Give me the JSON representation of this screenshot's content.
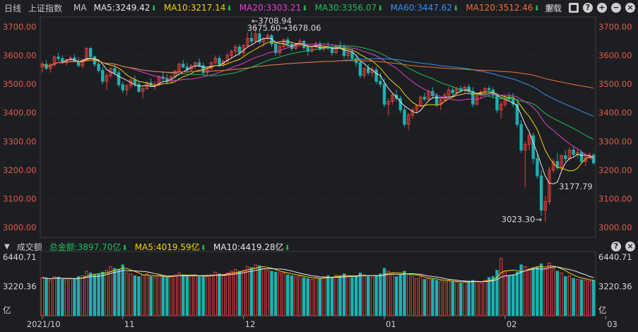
{
  "header": {
    "period": "日线",
    "index_name": "上证指数",
    "indicator": "MA",
    "ma5": "MA5:3249.42",
    "ma10": "MA10:3217.14",
    "ma20": "MA20:3303.21",
    "ma30": "MA30:3356.07",
    "ma60": "MA60:3447.62",
    "ma120": "MA120:3512.46",
    "more": "M",
    "reset_label": "重载",
    "arrow_glyph": "⬇",
    "icons": [
      "lock-icon",
      "help-icon",
      "zoom-in-icon",
      "zoom-out-icon",
      "close-icon"
    ]
  },
  "volume_header": {
    "title": "成交额",
    "total": "总金额:3897.70亿",
    "ma5": "MA5:4019.59亿",
    "ma10": "MA10:4419.28亿"
  },
  "colors": {
    "ma5": "#e8e8e8",
    "ma10": "#f5d10c",
    "ma20": "#e040c8",
    "ma30": "#1fbe5a",
    "ma60": "#3a8ef0",
    "ma120": "#f07030",
    "up": "#e8403a",
    "down": "#1fb0b0",
    "axis_text": "#e25a4a",
    "background": "#1d1e22"
  },
  "chart_data": {
    "type": "candlestick",
    "y_axis": {
      "ticks": [
        "3700.00",
        "3600.00",
        "3500.00",
        "3400.00",
        "3300.00",
        "3200.00",
        "3100.00",
        "3000.00"
      ],
      "ylim": [
        2975,
        3725
      ]
    },
    "x_axis": {
      "labels": [
        "2021/10",
        "11",
        "12",
        "01",
        "02",
        "03"
      ],
      "label_index": [
        0,
        20,
        50,
        85,
        115,
        140
      ]
    },
    "annotations": {
      "high": "3708.94",
      "high_near": "3675.60",
      "high2": "3678.06",
      "low": "3023.30",
      "recent_low": "3177.79"
    },
    "volume": {
      "ticks": [
        "6440.71",
        "3220.36",
        "亿"
      ],
      "max": 6440.71
    },
    "candles": [
      [
        3560,
        3580,
        3540,
        3570,
        4200
      ],
      [
        3570,
        3585,
        3550,
        3555,
        4100
      ],
      [
        3555,
        3575,
        3540,
        3568,
        3900
      ],
      [
        3568,
        3600,
        3560,
        3595,
        4300
      ],
      [
        3595,
        3610,
        3580,
        3590,
        4250
      ],
      [
        3590,
        3600,
        3570,
        3575,
        4000
      ],
      [
        3575,
        3590,
        3565,
        3585,
        3950
      ],
      [
        3585,
        3600,
        3575,
        3592,
        4100
      ],
      [
        3592,
        3605,
        3578,
        3580,
        4050
      ],
      [
        3580,
        3595,
        3560,
        3565,
        4300
      ],
      [
        3565,
        3590,
        3555,
        3586,
        4400
      ],
      [
        3586,
        3630,
        3580,
        3625,
        4900
      ],
      [
        3625,
        3630,
        3590,
        3596,
        4700
      ],
      [
        3596,
        3600,
        3560,
        3570,
        4500
      ],
      [
        3570,
        3580,
        3540,
        3548,
        4600
      ],
      [
        3548,
        3560,
        3500,
        3510,
        4800
      ],
      [
        3510,
        3540,
        3480,
        3530,
        5000
      ],
      [
        3530,
        3560,
        3520,
        3555,
        5400
      ],
      [
        3555,
        3570,
        3530,
        3540,
        5200
      ],
      [
        3540,
        3550,
        3490,
        3498,
        5100
      ],
      [
        3498,
        3510,
        3470,
        3480,
        5600
      ],
      [
        3480,
        3500,
        3460,
        3495,
        4700
      ],
      [
        3495,
        3520,
        3485,
        3515,
        4600
      ],
      [
        3515,
        3530,
        3490,
        3500,
        4400
      ],
      [
        3500,
        3510,
        3470,
        3475,
        4300
      ],
      [
        3475,
        3490,
        3450,
        3485,
        4500
      ],
      [
        3485,
        3510,
        3480,
        3505,
        4600
      ],
      [
        3505,
        3520,
        3490,
        3495,
        4300
      ],
      [
        3495,
        3510,
        3480,
        3500,
        4200
      ],
      [
        3500,
        3530,
        3495,
        3525,
        4400
      ],
      [
        3525,
        3540,
        3510,
        3520,
        4300
      ],
      [
        3520,
        3535,
        3500,
        3510,
        4200
      ],
      [
        3510,
        3530,
        3505,
        3528,
        4400
      ],
      [
        3528,
        3550,
        3520,
        3545,
        4500
      ],
      [
        3545,
        3575,
        3540,
        3570,
        4700
      ],
      [
        3570,
        3585,
        3555,
        3560,
        4500
      ],
      [
        3560,
        3575,
        3540,
        3550,
        4300
      ],
      [
        3550,
        3570,
        3545,
        3565,
        4400
      ],
      [
        3565,
        3580,
        3550,
        3575,
        4500
      ],
      [
        3575,
        3590,
        3560,
        3565,
        4300
      ],
      [
        3565,
        3575,
        3530,
        3540,
        4400
      ],
      [
        3540,
        3560,
        3530,
        3555,
        4300
      ],
      [
        3555,
        3580,
        3550,
        3575,
        4500
      ],
      [
        3575,
        3600,
        3570,
        3590,
        4800
      ],
      [
        3590,
        3600,
        3560,
        3570,
        4600
      ],
      [
        3570,
        3585,
        3560,
        3580,
        4400
      ],
      [
        3580,
        3610,
        3575,
        3600,
        4700
      ],
      [
        3600,
        3620,
        3590,
        3615,
        4900
      ],
      [
        3615,
        3640,
        3600,
        3630,
        5100
      ],
      [
        3630,
        3640,
        3600,
        3610,
        4900
      ],
      [
        3610,
        3640,
        3600,
        3635,
        5000
      ],
      [
        3635,
        3680,
        3630,
        3660,
        5400
      ],
      [
        3660,
        3685,
        3640,
        3650,
        5300
      ],
      [
        3650,
        3708,
        3645,
        3676,
        5600
      ],
      [
        3676,
        3690,
        3640,
        3648,
        5500
      ],
      [
        3648,
        3665,
        3630,
        3660,
        5200
      ],
      [
        3660,
        3678,
        3650,
        3670,
        5000
      ],
      [
        3670,
        3675,
        3630,
        3640,
        4900
      ],
      [
        3640,
        3650,
        3600,
        3610,
        4800
      ],
      [
        3610,
        3640,
        3600,
        3632,
        4700
      ],
      [
        3632,
        3660,
        3625,
        3655,
        4700
      ],
      [
        3655,
        3665,
        3630,
        3640,
        4500
      ],
      [
        3640,
        3650,
        3615,
        3625,
        4400
      ],
      [
        3625,
        3645,
        3620,
        3640,
        4300
      ],
      [
        3640,
        3660,
        3630,
        3650,
        4400
      ],
      [
        3650,
        3655,
        3620,
        3628,
        4200
      ],
      [
        3628,
        3640,
        3600,
        3615,
        4100
      ],
      [
        3615,
        3635,
        3610,
        3630,
        4000
      ],
      [
        3630,
        3650,
        3620,
        3640,
        4200
      ],
      [
        3640,
        3650,
        3615,
        3622,
        4100
      ],
      [
        3622,
        3640,
        3615,
        3632,
        4300
      ],
      [
        3632,
        3648,
        3620,
        3625,
        4400
      ],
      [
        3625,
        3640,
        3600,
        3610,
        4200
      ],
      [
        3610,
        3640,
        3605,
        3635,
        4500
      ],
      [
        3635,
        3650,
        3620,
        3628,
        4400
      ],
      [
        3628,
        3640,
        3590,
        3600,
        4600
      ],
      [
        3600,
        3620,
        3590,
        3612,
        4300
      ],
      [
        3612,
        3625,
        3580,
        3590,
        4200
      ],
      [
        3590,
        3600,
        3560,
        3575,
        4400
      ],
      [
        3575,
        3590,
        3520,
        3530,
        4700
      ],
      [
        3530,
        3560,
        3520,
        3555,
        4500
      ],
      [
        3555,
        3570,
        3530,
        3540,
        4300
      ],
      [
        3540,
        3560,
        3525,
        3550,
        4200
      ],
      [
        3550,
        3560,
        3500,
        3510,
        4400
      ],
      [
        3510,
        3540,
        3490,
        3500,
        4600
      ],
      [
        3500,
        3520,
        3420,
        3430,
        5200
      ],
      [
        3430,
        3450,
        3390,
        3440,
        4900
      ],
      [
        3440,
        3470,
        3430,
        3462,
        4600
      ],
      [
        3462,
        3480,
        3440,
        3450,
        4300
      ],
      [
        3450,
        3460,
        3400,
        3410,
        4500
      ],
      [
        3410,
        3420,
        3350,
        3360,
        4900
      ],
      [
        3360,
        3400,
        3340,
        3392,
        4600
      ],
      [
        3392,
        3420,
        3380,
        3410,
        4300
      ],
      [
        3410,
        3430,
        3400,
        3425,
        4100
      ],
      [
        3425,
        3460,
        3420,
        3455,
        4300
      ],
      [
        3455,
        3470,
        3440,
        3448,
        4000
      ],
      [
        3448,
        3480,
        3440,
        3475,
        4100
      ],
      [
        3475,
        3490,
        3450,
        3460,
        4000
      ],
      [
        3460,
        3470,
        3420,
        3430,
        3900
      ],
      [
        3430,
        3450,
        3410,
        3445,
        3800
      ],
      [
        3445,
        3470,
        3440,
        3462,
        3700
      ],
      [
        3462,
        3490,
        3450,
        3480,
        3900
      ],
      [
        3480,
        3490,
        3460,
        3470,
        3800
      ],
      [
        3470,
        3490,
        3465,
        3485,
        3700
      ],
      [
        3485,
        3495,
        3470,
        3478,
        3600
      ],
      [
        3478,
        3495,
        3470,
        3490,
        3700
      ],
      [
        3490,
        3500,
        3470,
        3475,
        3800
      ],
      [
        3475,
        3490,
        3420,
        3430,
        3900
      ],
      [
        3430,
        3470,
        3425,
        3465,
        3800
      ],
      [
        3465,
        3480,
        3450,
        3472,
        3600
      ],
      [
        3472,
        3490,
        3465,
        3485,
        3900
      ],
      [
        3485,
        3495,
        3470,
        3480,
        4200
      ],
      [
        3480,
        3490,
        3450,
        3462,
        4300
      ],
      [
        3462,
        3470,
        3400,
        3410,
        5000
      ],
      [
        3410,
        3440,
        3380,
        3430,
        6300
      ],
      [
        3430,
        3460,
        3420,
        3455,
        4900
      ],
      [
        3455,
        3470,
        3440,
        3448,
        4400
      ],
      [
        3448,
        3470,
        3420,
        3430,
        4500
      ],
      [
        3430,
        3440,
        3350,
        3360,
        4800
      ],
      [
        3360,
        3375,
        3260,
        3270,
        5600
      ],
      [
        3270,
        3300,
        3140,
        3290,
        5400
      ],
      [
        3290,
        3330,
        3270,
        3320,
        5200
      ],
      [
        3320,
        3330,
        3220,
        3240,
        5300
      ],
      [
        3240,
        3260,
        3170,
        3180,
        5400
      ],
      [
        3180,
        3200,
        3040,
        3060,
        5700
      ],
      [
        3060,
        3110,
        3020,
        3090,
        5200
      ],
      [
        3090,
        3210,
        3080,
        3200,
        5800
      ],
      [
        3200,
        3240,
        3190,
        3230,
        5200
      ],
      [
        3230,
        3260,
        3200,
        3210,
        4900
      ],
      [
        3210,
        3255,
        3200,
        3250,
        4700
      ],
      [
        3250,
        3270,
        3230,
        3240,
        4300
      ],
      [
        3240,
        3280,
        3235,
        3270,
        4400
      ],
      [
        3270,
        3285,
        3245,
        3255,
        4100
      ],
      [
        3255,
        3275,
        3240,
        3262,
        4000
      ],
      [
        3262,
        3270,
        3225,
        3230,
        3950
      ],
      [
        3230,
        3260,
        3215,
        3250,
        3900
      ],
      [
        3250,
        3262,
        3240,
        3252,
        3800
      ],
      [
        3252,
        3260,
        3218,
        3225,
        3897
      ]
    ]
  }
}
